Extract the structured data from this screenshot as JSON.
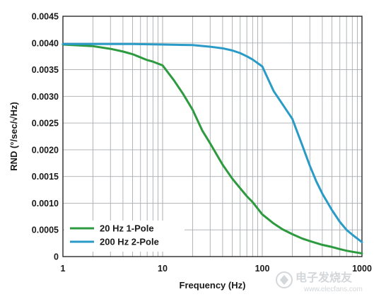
{
  "chart_data": {
    "type": "line",
    "title": "",
    "xlabel": "Frequency (Hz)",
    "ylabel": "RND (°/sec/√Hz)",
    "x_scale": "log",
    "xlim": [
      1,
      1000
    ],
    "ylim": [
      0,
      0.0045
    ],
    "x_tick_labels": [
      "1",
      "10",
      "100",
      "1000"
    ],
    "x_tick_values": [
      1,
      10,
      100,
      1000
    ],
    "y_tick_labels": [
      "0",
      "0.0005",
      "0.0010",
      "0.0015",
      "0.0020",
      "0.0025",
      "0.0030",
      "0.0035",
      "0.0040",
      "0.0045"
    ],
    "y_tick_values": [
      0,
      0.0005,
      0.001,
      0.0015,
      0.002,
      0.0025,
      0.003,
      0.0035,
      0.004,
      0.0045
    ],
    "grid": true,
    "legend_position": "bottom-left",
    "series": [
      {
        "name": "20 Hz 1-Pole",
        "color": "#2e9a3f",
        "x": [
          1,
          2,
          3,
          4,
          5,
          6,
          7,
          8,
          10,
          13,
          16,
          20,
          25,
          30,
          40,
          50,
          60,
          70,
          80,
          100,
          130,
          160,
          200,
          250,
          300,
          400,
          500,
          600,
          700,
          800,
          1000
        ],
        "y": [
          0.00397,
          0.00394,
          0.00389,
          0.00384,
          0.00379,
          0.00373,
          0.00368,
          0.00365,
          0.00358,
          0.0033,
          0.00305,
          0.00275,
          0.00236,
          0.00212,
          0.00172,
          0.00146,
          0.00128,
          0.00113,
          0.00102,
          0.00079,
          0.00062,
          0.00051,
          0.00042,
          0.00034,
          0.00029,
          0.00022,
          0.00018,
          0.00014,
          0.00011,
          9e-05,
          6e-05
        ]
      },
      {
        "name": "200 Hz 2-Pole",
        "color": "#2a9bc7",
        "x": [
          1,
          2,
          3,
          5,
          10,
          20,
          30,
          40,
          50,
          60,
          70,
          80,
          100,
          130,
          160,
          200,
          250,
          300,
          350,
          400,
          500,
          600,
          700,
          800,
          1000
        ],
        "y": [
          0.00398,
          0.00398,
          0.00398,
          0.00398,
          0.00397,
          0.00396,
          0.00393,
          0.0039,
          0.00386,
          0.00381,
          0.00375,
          0.00369,
          0.00356,
          0.0031,
          0.00285,
          0.00258,
          0.0021,
          0.0017,
          0.0014,
          0.00118,
          0.00087,
          0.00065,
          0.0005,
          0.00041,
          0.00027
        ]
      }
    ]
  },
  "watermark": {
    "text": "电子发烧友",
    "subtext": "www.elecfans.com"
  }
}
